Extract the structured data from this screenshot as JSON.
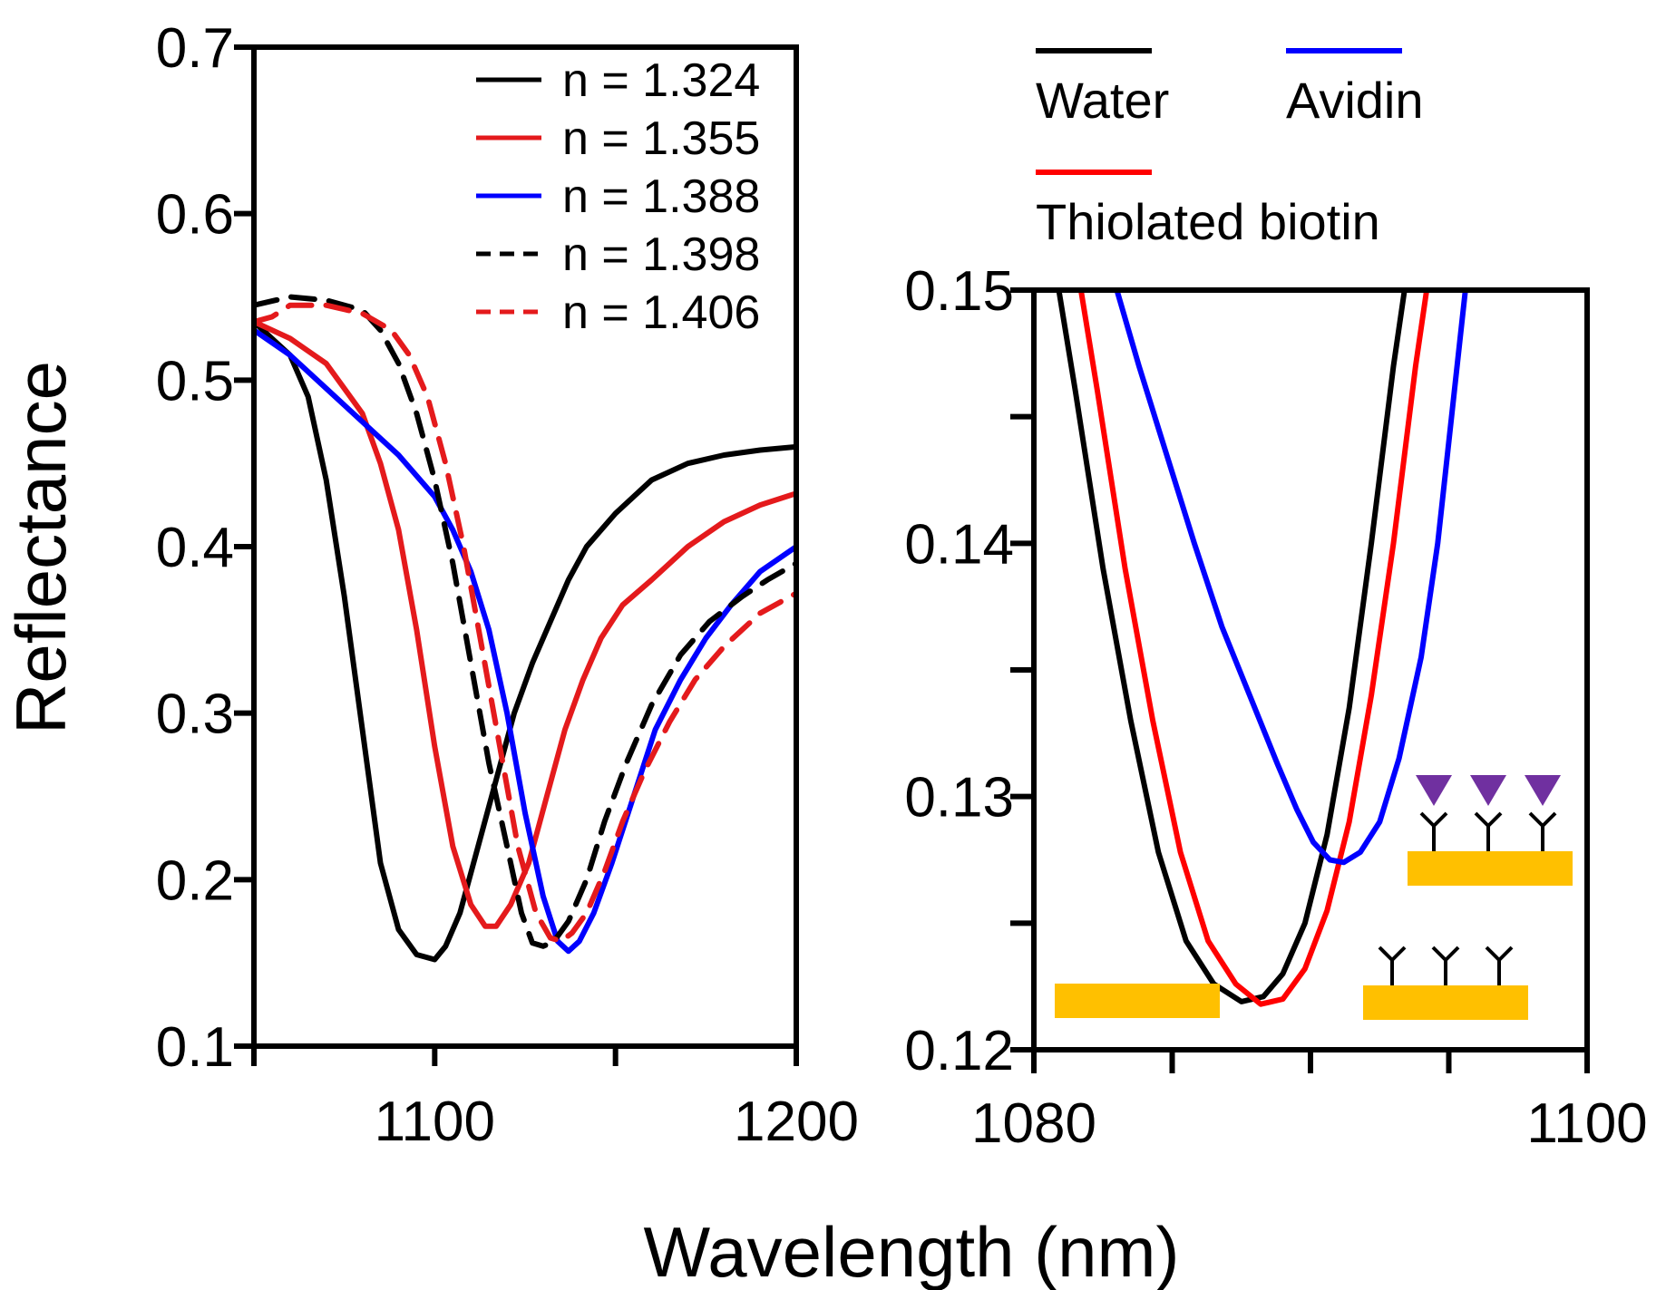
{
  "figure": {
    "shared_xlabel": "Wavelength (nm)",
    "shared_ylabel": "Reflectance"
  },
  "chart_data": [
    {
      "type": "line",
      "panel": "left",
      "xlabel": "",
      "ylabel": "Reflectance",
      "xlim": [
        1050,
        1200
      ],
      "ylim": [
        0.1,
        0.7
      ],
      "xticks": [
        1100,
        1200
      ],
      "xtick_labels": [
        "1100",
        "1200"
      ],
      "yticks": [
        0.1,
        0.2,
        0.3,
        0.4,
        0.5,
        0.6,
        0.7
      ],
      "ytick_labels": [
        "0.1",
        "0.2",
        "0.3",
        "0.4",
        "0.5",
        "0.6",
        "0.7"
      ],
      "legend_position": "top-right",
      "grid": false,
      "series": [
        {
          "name": "n = 1.324",
          "color": "#000000",
          "dash": "solid",
          "points": [
            [
              1050,
              0.535
            ],
            [
              1055,
              0.525
            ],
            [
              1060,
              0.515
            ],
            [
              1065,
              0.49
            ],
            [
              1070,
              0.44
            ],
            [
              1075,
              0.37
            ],
            [
              1080,
              0.29
            ],
            [
              1085,
              0.21
            ],
            [
              1090,
              0.17
            ],
            [
              1095,
              0.155
            ],
            [
              1100,
              0.152
            ],
            [
              1103,
              0.16
            ],
            [
              1107,
              0.18
            ],
            [
              1112,
              0.22
            ],
            [
              1117,
              0.26
            ],
            [
              1122,
              0.3
            ],
            [
              1127,
              0.33
            ],
            [
              1132,
              0.355
            ],
            [
              1137,
              0.38
            ],
            [
              1142,
              0.4
            ],
            [
              1150,
              0.42
            ],
            [
              1160,
              0.44
            ],
            [
              1170,
              0.45
            ],
            [
              1180,
              0.455
            ],
            [
              1190,
              0.458
            ],
            [
              1200,
              0.46
            ]
          ]
        },
        {
          "name": "n = 1.355",
          "color": "#e41a1c",
          "dash": "solid",
          "points": [
            [
              1050,
              0.535
            ],
            [
              1060,
              0.525
            ],
            [
              1070,
              0.51
            ],
            [
              1080,
              0.48
            ],
            [
              1085,
              0.45
            ],
            [
              1090,
              0.41
            ],
            [
              1095,
              0.35
            ],
            [
              1100,
              0.28
            ],
            [
              1105,
              0.22
            ],
            [
              1110,
              0.185
            ],
            [
              1114,
              0.172
            ],
            [
              1117,
              0.172
            ],
            [
              1121,
              0.185
            ],
            [
              1126,
              0.21
            ],
            [
              1131,
              0.25
            ],
            [
              1136,
              0.29
            ],
            [
              1141,
              0.32
            ],
            [
              1146,
              0.345
            ],
            [
              1152,
              0.365
            ],
            [
              1160,
              0.38
            ],
            [
              1170,
              0.4
            ],
            [
              1180,
              0.415
            ],
            [
              1190,
              0.425
            ],
            [
              1200,
              0.432
            ]
          ]
        },
        {
          "name": "n = 1.388",
          "color": "#0000ff",
          "dash": "solid",
          "points": [
            [
              1050,
              0.53
            ],
            [
              1060,
              0.515
            ],
            [
              1070,
              0.495
            ],
            [
              1080,
              0.475
            ],
            [
              1090,
              0.455
            ],
            [
              1100,
              0.43
            ],
            [
              1105,
              0.41
            ],
            [
              1110,
              0.385
            ],
            [
              1115,
              0.35
            ],
            [
              1120,
              0.3
            ],
            [
              1125,
              0.24
            ],
            [
              1130,
              0.19
            ],
            [
              1134,
              0.163
            ],
            [
              1137,
              0.157
            ],
            [
              1140,
              0.163
            ],
            [
              1144,
              0.18
            ],
            [
              1149,
              0.21
            ],
            [
              1155,
              0.25
            ],
            [
              1161,
              0.29
            ],
            [
              1168,
              0.32
            ],
            [
              1175,
              0.345
            ],
            [
              1182,
              0.365
            ],
            [
              1190,
              0.385
            ],
            [
              1200,
              0.4
            ]
          ]
        },
        {
          "name": "n = 1.398",
          "color": "#000000",
          "dash": "dashed",
          "points": [
            [
              1050,
              0.545
            ],
            [
              1060,
              0.55
            ],
            [
              1070,
              0.548
            ],
            [
              1080,
              0.542
            ],
            [
              1085,
              0.53
            ],
            [
              1090,
              0.51
            ],
            [
              1095,
              0.48
            ],
            [
              1100,
              0.44
            ],
            [
              1105,
              0.39
            ],
            [
              1110,
              0.33
            ],
            [
              1115,
              0.27
            ],
            [
              1120,
              0.22
            ],
            [
              1124,
              0.18
            ],
            [
              1127,
              0.162
            ],
            [
              1130,
              0.16
            ],
            [
              1133,
              0.163
            ],
            [
              1137,
              0.175
            ],
            [
              1142,
              0.2
            ],
            [
              1147,
              0.235
            ],
            [
              1153,
              0.27
            ],
            [
              1160,
              0.305
            ],
            [
              1168,
              0.335
            ],
            [
              1176,
              0.355
            ],
            [
              1185,
              0.37
            ],
            [
              1192,
              0.38
            ],
            [
              1200,
              0.39
            ]
          ]
        },
        {
          "name": "n = 1.406",
          "color": "#e41a1c",
          "dash": "dashed",
          "points": [
            [
              1050,
              0.535
            ],
            [
              1055,
              0.538
            ],
            [
              1060,
              0.545
            ],
            [
              1070,
              0.545
            ],
            [
              1080,
              0.54
            ],
            [
              1088,
              0.53
            ],
            [
              1093,
              0.515
            ],
            [
              1098,
              0.49
            ],
            [
              1103,
              0.45
            ],
            [
              1108,
              0.4
            ],
            [
              1113,
              0.34
            ],
            [
              1118,
              0.28
            ],
            [
              1123,
              0.22
            ],
            [
              1128,
              0.18
            ],
            [
              1132,
              0.165
            ],
            [
              1135,
              0.163
            ],
            [
              1138,
              0.168
            ],
            [
              1142,
              0.18
            ],
            [
              1147,
              0.205
            ],
            [
              1152,
              0.235
            ],
            [
              1158,
              0.265
            ],
            [
              1165,
              0.295
            ],
            [
              1172,
              0.32
            ],
            [
              1180,
              0.34
            ],
            [
              1190,
              0.36
            ],
            [
              1200,
              0.372
            ]
          ]
        }
      ]
    },
    {
      "type": "line",
      "panel": "right",
      "xlabel": "",
      "ylabel": "",
      "xlim": [
        1080,
        1100
      ],
      "ylim": [
        0.12,
        0.15
      ],
      "xticks": [
        1080,
        1100
      ],
      "xtick_labels": [
        "1080",
        "1100"
      ],
      "yticks": [
        0.12,
        0.13,
        0.14,
        0.15
      ],
      "ytick_labels": [
        "0.12",
        "0.13",
        "0.14",
        "0.15"
      ],
      "minor_xticks": [
        1085,
        1090,
        1095
      ],
      "minor_yticks": [
        0.125,
        0.135,
        0.145
      ],
      "legend_position": "above plot",
      "grid": false,
      "series": [
        {
          "name": "Water",
          "color": "#000000",
          "dash": "solid",
          "points": [
            [
              1080.9,
              0.15
            ],
            [
              1081.5,
              0.146
            ],
            [
              1082.5,
              0.139
            ],
            [
              1083.5,
              0.133
            ],
            [
              1084.5,
              0.1278
            ],
            [
              1085.5,
              0.1243
            ],
            [
              1086.5,
              0.1226
            ],
            [
              1087.5,
              0.1219
            ],
            [
              1088.3,
              0.1221
            ],
            [
              1089,
              0.123
            ],
            [
              1089.8,
              0.125
            ],
            [
              1090.6,
              0.1285
            ],
            [
              1091.4,
              0.1335
            ],
            [
              1092.2,
              0.14
            ],
            [
              1093,
              0.147
            ],
            [
              1093.4,
              0.15
            ]
          ]
        },
        {
          "name": "Thiolated biotin",
          "color": "#ff0000",
          "dash": "solid",
          "points": [
            [
              1081.7,
              0.15
            ],
            [
              1082.3,
              0.146
            ],
            [
              1083.3,
              0.139
            ],
            [
              1084.3,
              0.133
            ],
            [
              1085.3,
              0.1278
            ],
            [
              1086.3,
              0.1243
            ],
            [
              1087.3,
              0.1226
            ],
            [
              1088.2,
              0.1218
            ],
            [
              1089,
              0.122
            ],
            [
              1089.8,
              0.1232
            ],
            [
              1090.6,
              0.1255
            ],
            [
              1091.4,
              0.129
            ],
            [
              1092.2,
              0.134
            ],
            [
              1093,
              0.14
            ],
            [
              1093.8,
              0.147
            ],
            [
              1094.2,
              0.15
            ]
          ]
        },
        {
          "name": "Avidin",
          "color": "#0000ff",
          "dash": "solid",
          "points": [
            [
              1083,
              0.15
            ],
            [
              1083.8,
              0.147
            ],
            [
              1084.8,
              0.1435
            ],
            [
              1085.8,
              0.14
            ],
            [
              1086.8,
              0.1367
            ],
            [
              1087.8,
              0.134
            ],
            [
              1088.8,
              0.1313
            ],
            [
              1089.5,
              0.1295
            ],
            [
              1090.1,
              0.1282
            ],
            [
              1090.7,
              0.1275
            ],
            [
              1091.2,
              0.1274
            ],
            [
              1091.8,
              0.1278
            ],
            [
              1092.5,
              0.129
            ],
            [
              1093.2,
              0.1315
            ],
            [
              1094,
              0.1355
            ],
            [
              1094.6,
              0.14
            ],
            [
              1095.2,
              0.146
            ],
            [
              1095.6,
              0.15
            ]
          ]
        }
      ]
    }
  ],
  "schematic": {
    "substrate_color": "#FFC000",
    "avidin_color": "#7030A0",
    "receptor_color": "#000000"
  }
}
